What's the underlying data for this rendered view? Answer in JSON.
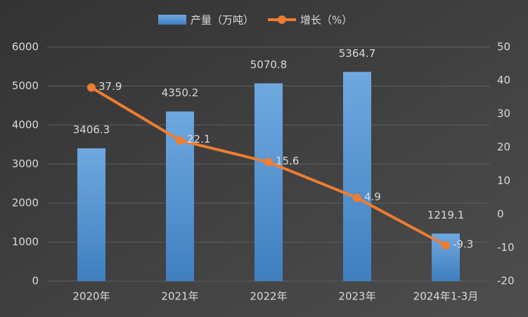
{
  "chart_data": {
    "type": "bar-line",
    "categories": [
      "2020年",
      "2021年",
      "2022年",
      "2023年",
      "2024年1-3月"
    ],
    "series": [
      {
        "name": "产量（万吨）",
        "type": "bar",
        "color": "#5b9bd5",
        "values": [
          3406.3,
          4350.2,
          5070.8,
          5364.7,
          1219.1
        ]
      },
      {
        "name": "增长（%）",
        "type": "line",
        "color": "#ed7d31",
        "axis": "y2",
        "values": [
          37.9,
          22.1,
          15.6,
          4.9,
          -9.3
        ]
      }
    ],
    "ylim": [
      0,
      6000
    ],
    "yticks": [
      0,
      1000,
      2000,
      3000,
      4000,
      5000,
      6000
    ],
    "y2lim": [
      -20,
      50
    ],
    "y2ticks": [
      -20,
      -10,
      0,
      10,
      20,
      30,
      40,
      50
    ],
    "grid": true,
    "legend": "top"
  }
}
